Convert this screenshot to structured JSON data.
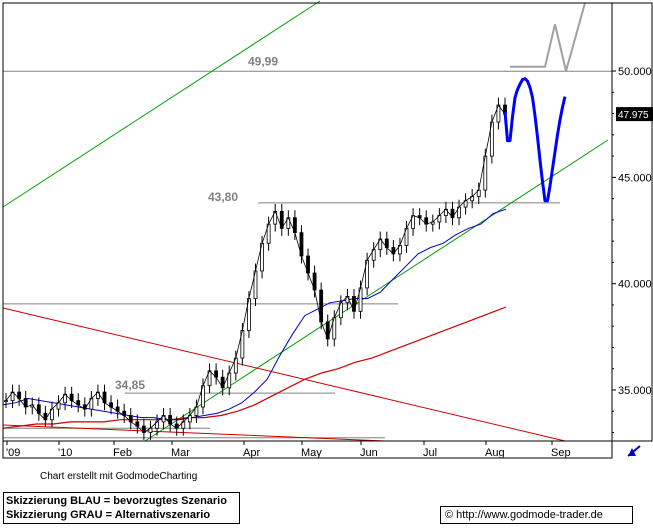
{
  "chart_data": {
    "type": "line",
    "title": "",
    "xlabel": "",
    "ylabel": "",
    "x_ticks": [
      "'09",
      "'10",
      "Feb",
      "Mar",
      "Apr",
      "May",
      "Jun",
      "Jul",
      "Aug",
      "Sep"
    ],
    "y_ticks": [
      "35.000",
      "40.000",
      "45.000",
      "50.000"
    ],
    "y_tick_values": [
      35,
      40,
      45,
      50
    ],
    "ylim": [
      32.6,
      53.2
    ],
    "grid": false,
    "last_price": "47.975",
    "last_price_value": 47.975,
    "annotations": [
      {
        "label": "49,99",
        "value": 49.99
      },
      {
        "label": "43,80",
        "value": 43.8
      },
      {
        "label": "34,85",
        "value": 34.85
      }
    ],
    "series": [
      {
        "values": [
          34.5,
          34.9,
          34.6,
          34.2,
          34.3,
          33.9,
          33.6,
          34.1,
          34.4,
          34.8,
          34.5,
          34.3,
          34.1,
          34.6,
          34.9,
          34.4,
          34.2,
          34.0,
          33.8,
          33.5,
          33.3,
          33.0,
          33.2,
          33.5,
          33.8,
          33.4,
          33.2,
          33.5,
          33.8,
          34.2,
          35.2,
          35.9,
          35.6,
          35.1,
          35.8,
          36.5,
          37.8,
          39.3,
          40.6,
          41.9,
          42.8,
          43.4,
          42.6,
          43.1,
          42.4,
          41.3,
          40.5,
          39.7,
          38.2,
          37.4,
          38.4,
          39.1,
          39.4,
          38.7,
          39.8,
          41.1,
          41.6,
          42.1,
          41.7,
          41.4,
          41.8,
          42.6,
          43.2,
          43.1,
          42.8,
          42.9,
          43.2,
          43.5,
          43.1,
          43.6,
          43.9,
          44.1,
          44.4,
          46.0,
          47.6,
          48.4,
          47.975
        ]
      },
      {
        "values": [
          34.3,
          34.4,
          34.6,
          34.5,
          34.4,
          34.3,
          34.2,
          34.1,
          34.0,
          33.9,
          33.8,
          33.7,
          33.7,
          33.6,
          33.6,
          33.7,
          33.8,
          33.9,
          34.1,
          34.4,
          34.9,
          35.5,
          36.6,
          37.6,
          38.5,
          38.8,
          39.1,
          39.2,
          39.3,
          39.3,
          39.6,
          40.2,
          40.8,
          41.4,
          41.7,
          41.9,
          42.3,
          42.6,
          42.8,
          43.3,
          43.5
        ]
      },
      {
        "values": [
          33.2,
          33.3,
          33.4,
          33.4,
          33.5,
          33.5,
          33.5,
          33.6,
          33.6,
          33.6,
          33.6,
          33.7,
          33.7,
          33.8,
          34.0,
          34.3,
          34.7,
          35.1,
          35.5,
          35.8,
          36.0,
          36.3,
          36.5,
          36.8,
          37.1,
          37.4,
          37.7,
          38.0,
          38.3,
          38.6,
          38.9
        ]
      },
      {
        "values": [
          48.08,
          46.72,
          46.73,
          47.85,
          48.75,
          49.13,
          49.38,
          49.6,
          49.64,
          49.52,
          49.23,
          48.75,
          47.9,
          46.9,
          45.8,
          44.8,
          43.9,
          43.9,
          44.6,
          45.4,
          46.2,
          47.0,
          47.7,
          48.3,
          48.8
        ]
      },
      {
        "values": [
          50.2,
          50.2,
          50.2,
          52.2,
          50.0,
          53.2
        ]
      }
    ]
  },
  "footer": {
    "credit": "Chart erstellt mit GodmodeCharting",
    "legend": [
      "Skizzierung BLAU = bevorzugtes Szenario",
      "Skizzierung GRAU = Alternativszenario"
    ],
    "url": "© http://www.godmode-trader.de"
  },
  "colors": {
    "price": "#000000",
    "ma_short": "#0000c8",
    "ma_long": "#cc0000",
    "trendline_green": "#00a000",
    "downtrend_red": "#cc0000",
    "horizontal_lines": "#808080",
    "scenario_blue": "#0000ff",
    "scenario_grey": "#a0a0a0",
    "price_box": "#000000"
  }
}
